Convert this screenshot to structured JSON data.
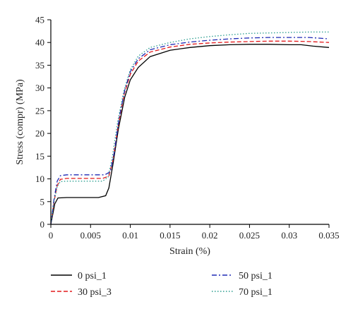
{
  "chart_data": {
    "type": "line",
    "xlabel": "Strain (%)",
    "ylabel": "Stress (compr) (MPa)",
    "xlim": [
      0,
      0.035
    ],
    "ylim": [
      0,
      45
    ],
    "xticks": [
      0,
      0.005,
      0.01,
      0.015,
      0.02,
      0.025,
      0.03,
      0.035
    ],
    "xtick_labels": [
      "0",
      "0.005",
      "0.01",
      "0.015",
      "0.02",
      "0.025",
      "0.03",
      "0.035"
    ],
    "yticks": [
      0,
      5,
      10,
      15,
      20,
      25,
      30,
      35,
      40,
      45
    ],
    "ytick_labels": [
      "0",
      "5",
      "10",
      "15",
      "20",
      "25",
      "30",
      "35",
      "40",
      "45"
    ],
    "grid": false,
    "legend_position": "bottom",
    "series": [
      {
        "name": "0 psi_1",
        "color": "#000000",
        "dash": "solid",
        "points": [
          [
            0,
            0
          ],
          [
            0.0005,
            4.5
          ],
          [
            0.0009,
            5.8
          ],
          [
            0.002,
            5.9
          ],
          [
            0.004,
            5.9
          ],
          [
            0.006,
            5.9
          ],
          [
            0.0069,
            6.3
          ],
          [
            0.0073,
            8.0
          ],
          [
            0.0078,
            13.0
          ],
          [
            0.0085,
            21.0
          ],
          [
            0.0093,
            28.0
          ],
          [
            0.01,
            31.8
          ],
          [
            0.011,
            34.5
          ],
          [
            0.0125,
            36.9
          ],
          [
            0.015,
            38.3
          ],
          [
            0.0175,
            38.9
          ],
          [
            0.02,
            39.3
          ],
          [
            0.0225,
            39.5
          ],
          [
            0.025,
            39.6
          ],
          [
            0.0275,
            39.6
          ],
          [
            0.03,
            39.5
          ],
          [
            0.0315,
            39.5
          ],
          [
            0.033,
            39.2
          ],
          [
            0.035,
            38.9
          ]
        ]
      },
      {
        "name": "30 psi_3",
        "color": "#e31a1c",
        "dash": "dashed",
        "points": [
          [
            0,
            0
          ],
          [
            0.0004,
            5.0
          ],
          [
            0.0008,
            8.5
          ],
          [
            0.0012,
            9.9
          ],
          [
            0.002,
            10.1
          ],
          [
            0.004,
            10.1
          ],
          [
            0.0065,
            10.1
          ],
          [
            0.0073,
            10.6
          ],
          [
            0.0078,
            14.0
          ],
          [
            0.0085,
            22.0
          ],
          [
            0.0092,
            28.5
          ],
          [
            0.01,
            33.0
          ],
          [
            0.011,
            35.9
          ],
          [
            0.0125,
            37.9
          ],
          [
            0.015,
            39.0
          ],
          [
            0.0175,
            39.6
          ],
          [
            0.02,
            39.9
          ],
          [
            0.0225,
            40.1
          ],
          [
            0.025,
            40.2
          ],
          [
            0.0275,
            40.3
          ],
          [
            0.03,
            40.3
          ],
          [
            0.0325,
            40.2
          ],
          [
            0.035,
            40.0
          ]
        ]
      },
      {
        "name": "50 psi_1",
        "color": "#1f2ab5",
        "dash": "dashdot",
        "points": [
          [
            0,
            0
          ],
          [
            0.0004,
            5.5
          ],
          [
            0.0008,
            9.5
          ],
          [
            0.0012,
            10.7
          ],
          [
            0.002,
            10.9
          ],
          [
            0.004,
            10.9
          ],
          [
            0.0068,
            10.9
          ],
          [
            0.0075,
            11.6
          ],
          [
            0.008,
            16.0
          ],
          [
            0.0086,
            23.5
          ],
          [
            0.0093,
            29.5
          ],
          [
            0.01,
            33.6
          ],
          [
            0.011,
            36.4
          ],
          [
            0.0125,
            38.4
          ],
          [
            0.015,
            39.5
          ],
          [
            0.0175,
            40.1
          ],
          [
            0.02,
            40.5
          ],
          [
            0.0225,
            40.8
          ],
          [
            0.025,
            41.0
          ],
          [
            0.0275,
            41.1
          ],
          [
            0.03,
            41.1
          ],
          [
            0.0325,
            41.1
          ],
          [
            0.035,
            40.8
          ]
        ]
      },
      {
        "name": "70 psi_1",
        "color": "#2a9d8f",
        "dash": "dotted",
        "points": [
          [
            0,
            0
          ],
          [
            0.0004,
            5.0
          ],
          [
            0.0008,
            8.3
          ],
          [
            0.0012,
            9.4
          ],
          [
            0.002,
            9.5
          ],
          [
            0.004,
            9.5
          ],
          [
            0.0065,
            9.5
          ],
          [
            0.0072,
            10.4
          ],
          [
            0.0077,
            14.5
          ],
          [
            0.0084,
            22.5
          ],
          [
            0.0092,
            29.5
          ],
          [
            0.01,
            34.0
          ],
          [
            0.011,
            37.0
          ],
          [
            0.0125,
            38.9
          ],
          [
            0.015,
            40.0
          ],
          [
            0.0175,
            40.8
          ],
          [
            0.02,
            41.3
          ],
          [
            0.0225,
            41.7
          ],
          [
            0.025,
            42.0
          ],
          [
            0.0275,
            42.1
          ],
          [
            0.03,
            42.2
          ],
          [
            0.0325,
            42.3
          ],
          [
            0.035,
            42.3
          ]
        ]
      }
    ]
  }
}
